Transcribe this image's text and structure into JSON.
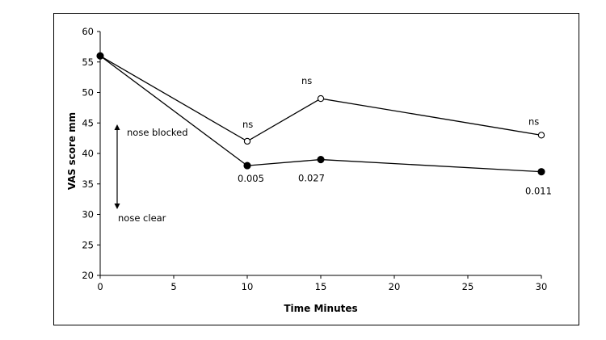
{
  "chart_data": {
    "type": "line",
    "title": "",
    "xlabel": "Time Minutes",
    "ylabel": "VAS score mm",
    "xlim": [
      0,
      30
    ],
    "ylim": [
      20,
      60
    ],
    "xticks": [
      0,
      5,
      10,
      15,
      20,
      25,
      30
    ],
    "yticks": [
      20,
      25,
      30,
      35,
      40,
      45,
      50,
      55,
      60
    ],
    "grid": false,
    "legend": "none",
    "series": [
      {
        "marker": "open-circle",
        "color": "#000000",
        "x": [
          0,
          10,
          15,
          30
        ],
        "y": [
          56,
          42,
          49,
          43
        ],
        "point_labels": [
          "",
          "ns",
          "ns",
          "ns"
        ]
      },
      {
        "marker": "filled-circle",
        "color": "#000000",
        "x": [
          0,
          10,
          15,
          30
        ],
        "y": [
          56,
          38,
          39,
          37
        ],
        "point_labels": [
          "",
          "0.005",
          "0.027",
          "0.011"
        ]
      }
    ],
    "annotations": {
      "arrow_top_label": "nose blocked",
      "arrow_bottom_label": "nose clear"
    }
  }
}
